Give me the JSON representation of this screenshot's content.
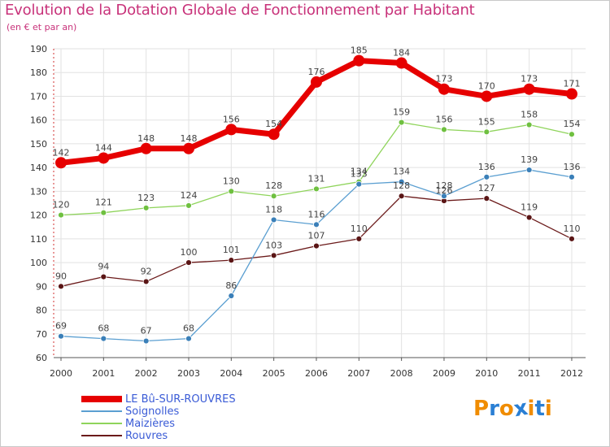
{
  "title": "Evolution de la Dotation Globale de Fonctionnement par Habitant",
  "subtitle": "(en € et par an)",
  "logo": {
    "text": "Proxiti",
    "letters": [
      "P",
      "r",
      "o",
      "x",
      "i",
      "t",
      "i"
    ],
    "colors": [
      "#f08c00",
      "#2a7fd4",
      "#f08c00",
      "#2a7fd4",
      "#f08c00",
      "#2a7fd4",
      "#f08c00"
    ]
  },
  "chart_data": {
    "type": "line",
    "title": "Evolution de la Dotation Globale de Fonctionnement par Habitant",
    "subtitle": "(en € et par an)",
    "x": [
      "2000",
      "2001",
      "2002",
      "2003",
      "2004",
      "2005",
      "2006",
      "2007",
      "2008",
      "2009",
      "2010",
      "2011",
      "2012"
    ],
    "ylim": [
      60,
      190
    ],
    "yticks": [
      60,
      70,
      80,
      90,
      100,
      110,
      120,
      130,
      140,
      150,
      160,
      170,
      180,
      190
    ],
    "grid": true,
    "legend_position": "bottom-left",
    "series": [
      {
        "name": "LE Bû-SUR-ROUVRES",
        "color": "#e60000",
        "values": [
          142,
          144,
          148,
          148,
          156,
          154,
          176,
          185,
          184,
          173,
          170,
          173,
          171
        ]
      },
      {
        "name": "Soignolles",
        "color": "#5b9fd1",
        "values": [
          69,
          68,
          67,
          68,
          86,
          118,
          116,
          133,
          134,
          128,
          136,
          139,
          136
        ]
      },
      {
        "name": "Maizières",
        "color": "#8fd45b",
        "values": [
          120,
          121,
          123,
          124,
          130,
          128,
          131,
          134,
          159,
          156,
          155,
          158,
          154
        ]
      },
      {
        "name": "Rouvres",
        "color": "#6b1a1a",
        "values": [
          90,
          94,
          92,
          100,
          101,
          103,
          107,
          110,
          128,
          126,
          127,
          119,
          110
        ]
      }
    ]
  }
}
